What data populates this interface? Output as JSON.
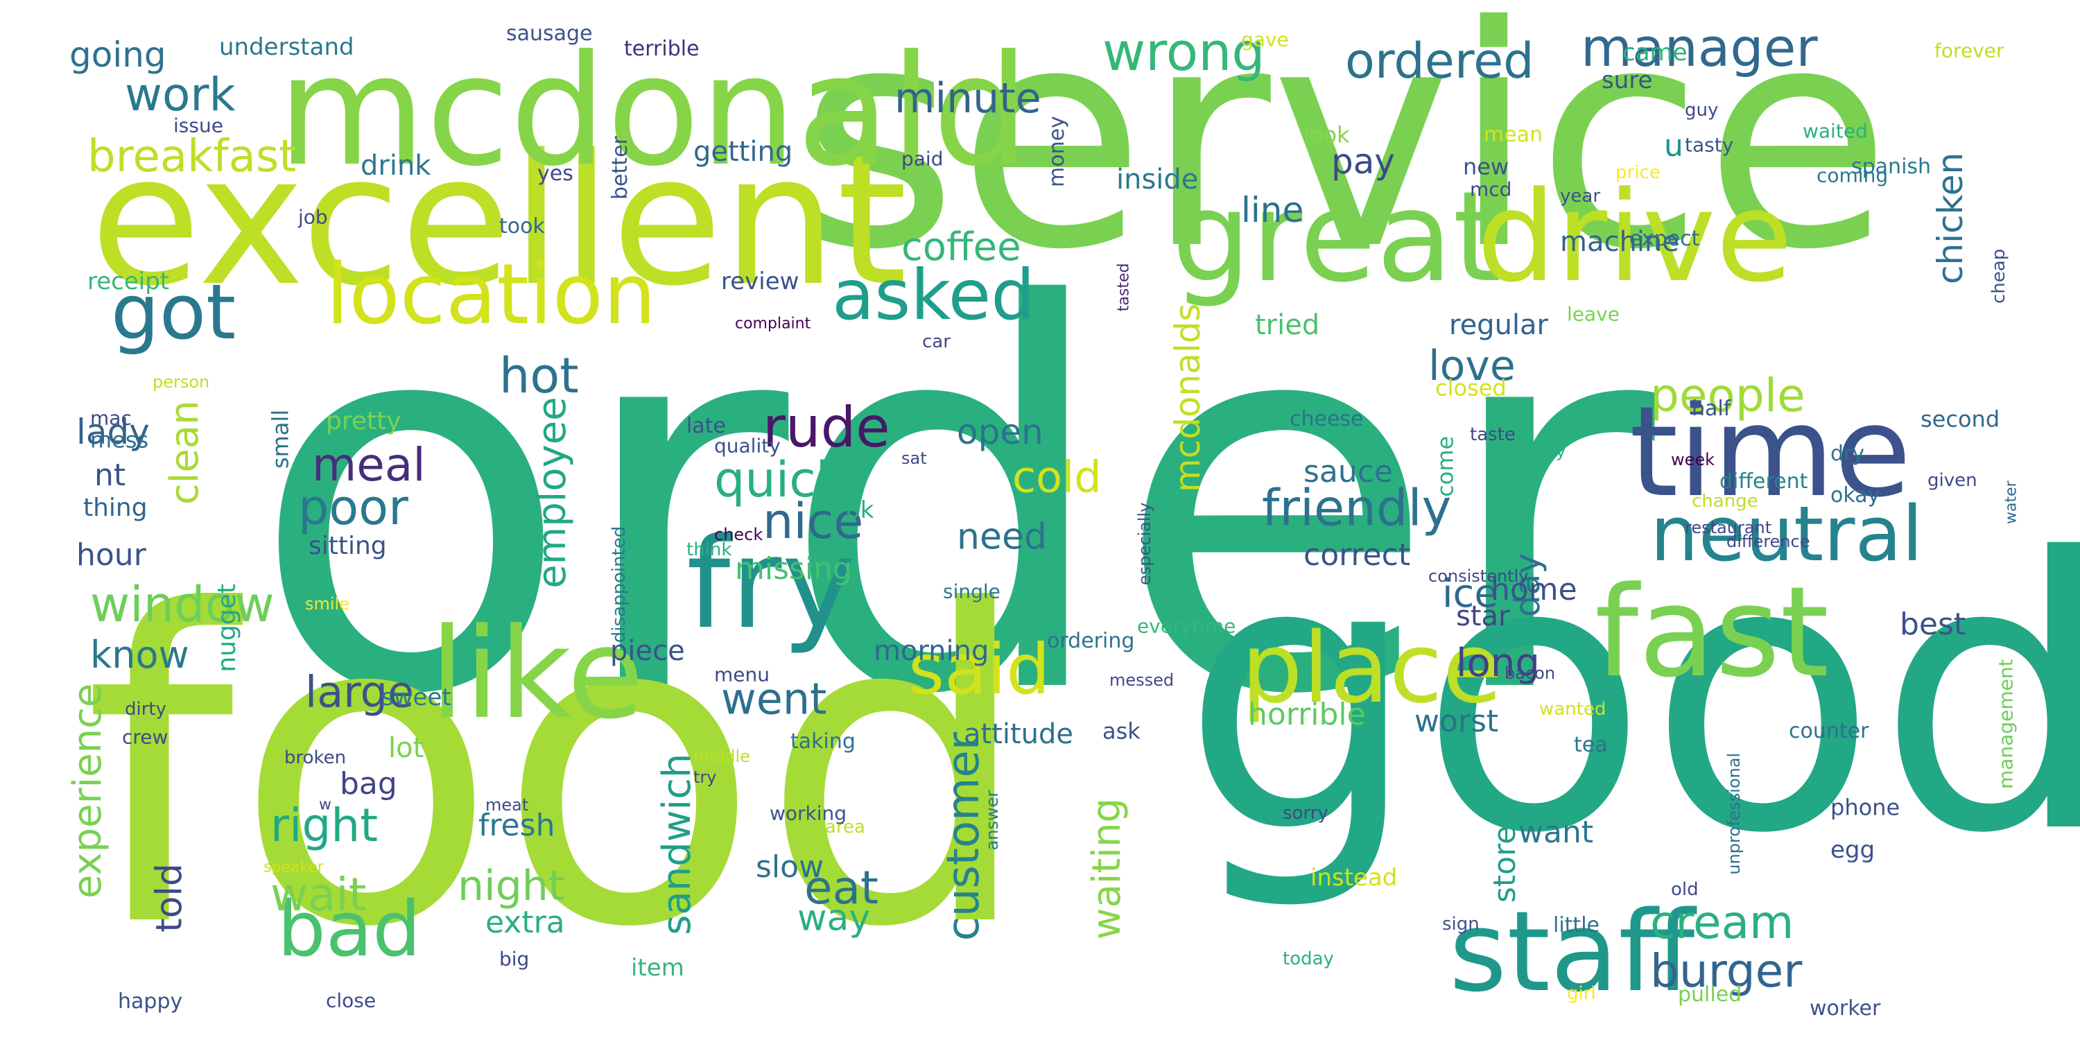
{
  "words": [
    {
      "text": "order",
      "color": "#2ab07f"
    },
    {
      "text": "food",
      "color": "#a5db36"
    },
    {
      "text": "service",
      "color": "#7ad151"
    },
    {
      "text": "good",
      "color": "#22a884"
    },
    {
      "text": "excellent",
      "color": "#bddf26"
    },
    {
      "text": "mcdonald",
      "color": "#86d549"
    },
    {
      "text": "great",
      "color": "#7ad151"
    },
    {
      "text": "drive",
      "color": "#bddf26"
    },
    {
      "text": "time",
      "color": "#3b528b"
    },
    {
      "text": "fast",
      "color": "#7ad151"
    },
    {
      "text": "like",
      "color": "#86d549"
    },
    {
      "text": "fry",
      "color": "#21918c"
    },
    {
      "text": "staff",
      "color": "#1f988b"
    },
    {
      "text": "place",
      "color": "#bddf26"
    },
    {
      "text": "location",
      "color": "#d2e21b"
    },
    {
      "text": "neutral",
      "color": "#25838e"
    },
    {
      "text": "got",
      "color": "#2a788e"
    },
    {
      "text": "bad",
      "color": "#4ac16d"
    },
    {
      "text": "said",
      "color": "#d2e21b"
    },
    {
      "text": "asked",
      "color": "#1f9e89"
    },
    {
      "text": "wrong",
      "color": "#35b779"
    },
    {
      "text": "ordered",
      "color": "#2c728e"
    },
    {
      "text": "manager",
      "color": "#31688e"
    },
    {
      "text": "minute",
      "color": "#33638d"
    },
    {
      "text": "breakfast",
      "color": "#bddf26"
    },
    {
      "text": "work",
      "color": "#2a788e"
    },
    {
      "text": "going",
      "color": "#2c728e"
    },
    {
      "text": "friendly",
      "color": "#2c728e"
    },
    {
      "text": "people",
      "color": "#a0da39"
    },
    {
      "text": "rude",
      "color": "#481769"
    },
    {
      "text": "quick",
      "color": "#29af7f"
    },
    {
      "text": "coffee",
      "color": "#35b779"
    },
    {
      "text": "window",
      "color": "#6ece58"
    },
    {
      "text": "hot",
      "color": "#2c728e"
    },
    {
      "text": "love",
      "color": "#2d708e"
    },
    {
      "text": "meal",
      "color": "#472d7b"
    },
    {
      "text": "poor",
      "color": "#2a788e"
    },
    {
      "text": "clean",
      "color": "#a8db34"
    },
    {
      "text": "nice",
      "color": "#31688e"
    },
    {
      "text": "cold",
      "color": "#d2e21b"
    },
    {
      "text": "employee",
      "color": "#22a884"
    },
    {
      "text": "large",
      "color": "#3b528b"
    },
    {
      "text": "went",
      "color": "#2d708e"
    },
    {
      "text": "eat",
      "color": "#2c728e"
    },
    {
      "text": "cream",
      "color": "#2ab07f"
    },
    {
      "text": "burger",
      "color": "#32658e"
    },
    {
      "text": "customer",
      "color": "#25838e"
    },
    {
      "text": "sandwich",
      "color": "#1f9e89"
    },
    {
      "text": "waiting",
      "color": "#86d549"
    },
    {
      "text": "experience",
      "color": "#7ad151"
    },
    {
      "text": "right",
      "color": "#22a884"
    },
    {
      "text": "wait",
      "color": "#7ad151"
    },
    {
      "text": "night",
      "color": "#6ece58"
    },
    {
      "text": "told",
      "color": "#3e4989"
    },
    {
      "text": "mcdonalds",
      "color": "#c2df23"
    },
    {
      "text": "chicken",
      "color": "#2c728e"
    },
    {
      "text": "ice",
      "color": "#31688e"
    },
    {
      "text": "day",
      "color": "#2d708e"
    },
    {
      "text": "long",
      "color": "#424086"
    },
    {
      "text": "know",
      "color": "#2a788e"
    },
    {
      "text": "lady",
      "color": "#33638d"
    },
    {
      "text": "pay",
      "color": "#3e4989"
    },
    {
      "text": "line",
      "color": "#2d708e"
    },
    {
      "text": "u",
      "color": "#20928c"
    },
    {
      "text": "need",
      "color": "#2c728e"
    },
    {
      "text": "open",
      "color": "#2c728e"
    },
    {
      "text": "home",
      "color": "#3b528b"
    },
    {
      "text": "correct",
      "color": "#3b528b"
    },
    {
      "text": "sauce",
      "color": "#2c728e"
    },
    {
      "text": "way",
      "color": "#2ab07f"
    },
    {
      "text": "slow",
      "color": "#2c728e"
    },
    {
      "text": "missing",
      "color": "#46c06f"
    },
    {
      "text": "morning",
      "color": "#31688e"
    },
    {
      "text": "attitude",
      "color": "#2d708e"
    },
    {
      "text": "worst",
      "color": "#2c728e"
    },
    {
      "text": "horrible",
      "color": "#5ec962"
    },
    {
      "text": "best",
      "color": "#3b528b"
    },
    {
      "text": "star",
      "color": "#414487"
    },
    {
      "text": "store",
      "color": "#1f9e89"
    },
    {
      "text": "want",
      "color": "#2a788e"
    },
    {
      "text": "machine",
      "color": "#33638d"
    },
    {
      "text": "regular",
      "color": "#33638d"
    },
    {
      "text": "tried",
      "color": "#4ac16d"
    },
    {
      "text": "inside",
      "color": "#2a788e"
    },
    {
      "text": "getting",
      "color": "#31688e"
    },
    {
      "text": "drink",
      "color": "#2a788e"
    },
    {
      "text": "hour",
      "color": "#3b528b"
    },
    {
      "text": "nt",
      "color": "#3b528b"
    },
    {
      "text": "thing",
      "color": "#33638d"
    },
    {
      "text": "nugget",
      "color": "#22a884"
    },
    {
      "text": "sitting",
      "color": "#3b528b"
    },
    {
      "text": "small",
      "color": "#2d708e"
    },
    {
      "text": "mess",
      "color": "#2d708e"
    },
    {
      "text": "mac",
      "color": "#3e4989"
    },
    {
      "text": "pretty",
      "color": "#7ad151"
    },
    {
      "text": "fresh",
      "color": "#2a788e"
    },
    {
      "text": "bag",
      "color": "#414487"
    },
    {
      "text": "lot",
      "color": "#7ad151"
    },
    {
      "text": "extra",
      "color": "#2ab07f"
    },
    {
      "text": "sweet",
      "color": "#2a788e"
    },
    {
      "text": "piece",
      "color": "#3b528b"
    },
    {
      "text": "ok",
      "color": "#2ab07f"
    },
    {
      "text": "review",
      "color": "#3b528b"
    },
    {
      "text": "understand",
      "color": "#2a788e"
    },
    {
      "text": "sausage",
      "color": "#3b528b"
    },
    {
      "text": "terrible",
      "color": "#472d7b"
    },
    {
      "text": "receipt",
      "color": "#35b779"
    },
    {
      "text": "yes",
      "color": "#3e4989"
    },
    {
      "text": "issue",
      "color": "#3e4989"
    },
    {
      "text": "job",
      "color": "#3e4989"
    },
    {
      "text": "took",
      "color": "#31688e"
    },
    {
      "text": "better",
      "color": "#3b528b"
    },
    {
      "text": "money",
      "color": "#3b528b"
    },
    {
      "text": "paid",
      "color": "#3e4989"
    },
    {
      "text": "new",
      "color": "#3b528b"
    },
    {
      "text": "mcd",
      "color": "#3e4989"
    },
    {
      "text": "look",
      "color": "#86d549"
    },
    {
      "text": "mean",
      "color": "#d2e21b"
    },
    {
      "text": "sure",
      "color": "#3b528b"
    },
    {
      "text": "came",
      "color": "#2ab07f"
    },
    {
      "text": "gave",
      "color": "#d2e21b"
    },
    {
      "text": "forever",
      "color": "#bddf26"
    },
    {
      "text": "guy",
      "color": "#3e4989"
    },
    {
      "text": "tasty",
      "color": "#3b528b"
    },
    {
      "text": "waited",
      "color": "#2ab07f"
    },
    {
      "text": "price",
      "color": "#fde725"
    },
    {
      "text": "coming",
      "color": "#2a788e"
    },
    {
      "text": "spanish",
      "color": "#2a788e"
    },
    {
      "text": "year",
      "color": "#3b528b"
    },
    {
      "text": "expect",
      "color": "#2d708e"
    },
    {
      "text": "cheap",
      "color": "#3b528b"
    },
    {
      "text": "tasted",
      "color": "#482878"
    },
    {
      "text": "leave",
      "color": "#7ad151"
    },
    {
      "text": "complaint",
      "color": "#440154"
    },
    {
      "text": "car",
      "color": "#3e4989"
    },
    {
      "text": "different",
      "color": "#25838e"
    },
    {
      "text": "cheese",
      "color": "#2c728e"
    },
    {
      "text": "taste",
      "color": "#3e4989"
    },
    {
      "text": "closed",
      "color": "#d2e21b"
    },
    {
      "text": "come",
      "color": "#2ab07f"
    },
    {
      "text": "half",
      "color": "#3b528b"
    },
    {
      "text": "dry",
      "color": "#2c728e"
    },
    {
      "text": "second",
      "color": "#31688e"
    },
    {
      "text": "week",
      "color": "#440154"
    },
    {
      "text": "ready",
      "color": "#2ab07f"
    },
    {
      "text": "okay",
      "color": "#2c728e"
    },
    {
      "text": "given",
      "color": "#3e4989"
    },
    {
      "text": "change",
      "color": "#bddf26"
    },
    {
      "text": "restaurant",
      "color": "#3e4989"
    },
    {
      "text": "difference",
      "color": "#3e4989"
    },
    {
      "text": "water",
      "color": "#31688e"
    },
    {
      "text": "especially",
      "color": "#3b528b"
    },
    {
      "text": "quality",
      "color": "#3b528b"
    },
    {
      "text": "sat",
      "color": "#3e4989"
    },
    {
      "text": "disappointed",
      "color": "#2a788e"
    },
    {
      "text": "late",
      "color": "#3b528b"
    },
    {
      "text": "check",
      "color": "#440154"
    },
    {
      "text": "think",
      "color": "#29af7f"
    },
    {
      "text": "single",
      "color": "#2a788e"
    },
    {
      "text": "smile",
      "color": "#fde725"
    },
    {
      "text": "everytime",
      "color": "#35b779"
    },
    {
      "text": "consistently",
      "color": "#3e4989"
    },
    {
      "text": "bacon",
      "color": "#3e4989"
    },
    {
      "text": "ordering",
      "color": "#2c728e"
    },
    {
      "text": "messed",
      "color": "#3e4989"
    },
    {
      "text": "menu",
      "color": "#3e4989"
    },
    {
      "text": "wanted",
      "color": "#d2e21b"
    },
    {
      "text": "ask",
      "color": "#3b528b"
    },
    {
      "text": "taking",
      "color": "#2c728e"
    },
    {
      "text": "person",
      "color": "#bddf26"
    },
    {
      "text": "dirty",
      "color": "#3e4989"
    },
    {
      "text": "crew",
      "color": "#3e4989"
    },
    {
      "text": "broken",
      "color": "#3e4989"
    },
    {
      "text": "middle",
      "color": "#bddf26"
    },
    {
      "text": "try",
      "color": "#3e4989"
    },
    {
      "text": "w",
      "color": "#3e4989"
    },
    {
      "text": "meat",
      "color": "#3e4989"
    },
    {
      "text": "speaker",
      "color": "#d2e21b"
    },
    {
      "text": "area",
      "color": "#bddf26"
    },
    {
      "text": "answer",
      "color": "#2a788e"
    },
    {
      "text": "working",
      "color": "#3b528b"
    },
    {
      "text": "happy",
      "color": "#3b528b"
    },
    {
      "text": "item",
      "color": "#35b779"
    },
    {
      "text": "big",
      "color": "#3e4989"
    },
    {
      "text": "close",
      "color": "#3e4989"
    },
    {
      "text": "instead",
      "color": "#d2e21b"
    },
    {
      "text": "tea",
      "color": "#2c728e"
    },
    {
      "text": "counter",
      "color": "#2c728e"
    },
    {
      "text": "management",
      "color": "#6ece58"
    },
    {
      "text": "unprofessional",
      "color": "#2c728e"
    },
    {
      "text": "sorry",
      "color": "#3e4989"
    },
    {
      "text": "phone",
      "color": "#3b528b"
    },
    {
      "text": "egg",
      "color": "#3b528b"
    },
    {
      "text": "old",
      "color": "#3e4989"
    },
    {
      "text": "sign",
      "color": "#3b528b"
    },
    {
      "text": "little",
      "color": "#2c728e"
    },
    {
      "text": "today",
      "color": "#2ab07f"
    },
    {
      "text": "girl",
      "color": "#fde725"
    },
    {
      "text": "pulled",
      "color": "#7ad151"
    },
    {
      "text": "worker",
      "color": "#3b528b"
    }
  ]
}
